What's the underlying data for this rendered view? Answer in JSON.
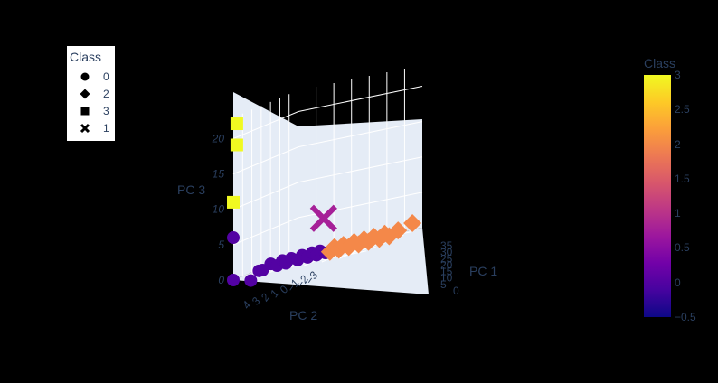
{
  "chart_data": {
    "type": "scatter",
    "dimensions": 3,
    "xlabel": "PC 1",
    "ylabel": "PC 2",
    "zlabel": "PC 3",
    "x_ticks": [
      "0",
      "5",
      "10",
      "15",
      "20",
      "25",
      "30",
      "35"
    ],
    "y_ticks": [
      "4",
      "3",
      "2",
      "1",
      "0",
      "−1",
      "−2",
      "−3"
    ],
    "z_ticks": [
      "0",
      "5",
      "10",
      "15",
      "20"
    ],
    "legend": {
      "title": "Class",
      "items": [
        {
          "label": "0",
          "symbol": "circle"
        },
        {
          "label": "2",
          "symbol": "diamond"
        },
        {
          "label": "3",
          "symbol": "square"
        },
        {
          "label": "1",
          "symbol": "x"
        }
      ]
    },
    "colorbar": {
      "title": "Class",
      "range": [
        -0.5,
        3
      ],
      "ticks": [
        "3",
        "2.5",
        "2",
        "1.5",
        "1",
        "0.5",
        "0",
        "−0.5"
      ],
      "colors": [
        "#0d0887",
        "#46039f",
        "#7201a8",
        "#9c179e",
        "#bd3786",
        "#d8576b",
        "#ed7953",
        "#fb9f3a",
        "#fdca26",
        "#f0f921"
      ]
    },
    "series": [
      {
        "name": "0",
        "symbol": "circle",
        "color": "#5302a3",
        "x": [
          0,
          0,
          1,
          2,
          3,
          4,
          5,
          6,
          7,
          8,
          9,
          10,
          11,
          12,
          13,
          14,
          15
        ],
        "y": [
          4,
          4,
          2.5,
          2,
          2,
          1.5,
          1.2,
          1,
          1,
          0.8,
          0.5,
          0.4,
          0.2,
          0.1,
          0,
          0,
          -0.2
        ],
        "z": [
          6,
          0,
          -1,
          0,
          0,
          0.5,
          0,
          0.5,
          0,
          0.5,
          0,
          0.5,
          0,
          0.5,
          0,
          0.5,
          0
        ]
      },
      {
        "name": "2",
        "symbol": "diamond",
        "color": "#f48849",
        "x": [
          16,
          17,
          18,
          19,
          20,
          21,
          22,
          23,
          24,
          25,
          26,
          27,
          28,
          30,
          33
        ],
        "y": [
          -0.3,
          -0.4,
          -0.5,
          -0.6,
          -0.8,
          -1,
          -1.1,
          -1.3,
          -1.4,
          -1.6,
          -1.8,
          -2,
          -2.1,
          -2.3,
          -2.7
        ],
        "z": [
          0,
          0.5,
          0,
          0.5,
          0,
          0.5,
          0,
          0.5,
          0,
          0.5,
          0,
          0.5,
          0,
          0.5,
          1
        ]
      },
      {
        "name": "3",
        "symbol": "square",
        "color": "#f0f921",
        "x": [
          0,
          1,
          1
        ],
        "y": [
          4,
          4,
          4
        ],
        "z": [
          11,
          19,
          22
        ]
      },
      {
        "name": "1",
        "symbol": "x",
        "color": "#a62098",
        "x": [
          15
        ],
        "y": [
          0
        ],
        "z": [
          5
        ]
      }
    ]
  }
}
